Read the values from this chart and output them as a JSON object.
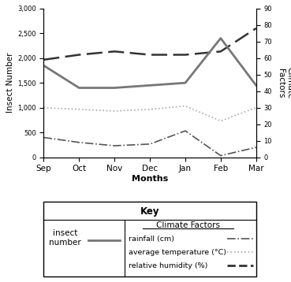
{
  "months": [
    "Sep",
    "Oct",
    "Nov",
    "Dec",
    "Jan",
    "Feb",
    "Mar"
  ],
  "insect_number": [
    1850,
    1400,
    1400,
    1450,
    1500,
    2400,
    1450
  ],
  "rainfall_right": [
    12,
    9,
    7,
    8,
    16,
    1,
    6
  ],
  "avg_temp_right": [
    30,
    29,
    28,
    29,
    31,
    22,
    30
  ],
  "rel_humidity_right": [
    59,
    62,
    64,
    62,
    62,
    64,
    78
  ],
  "left_ylim": [
    0,
    3000
  ],
  "right_ylim": [
    0,
    90
  ],
  "left_ytick_labels": [
    "0",
    "500",
    "1,000",
    "1,500",
    "2,000",
    "2,500",
    "3,000"
  ],
  "left_ytick_vals": [
    0,
    500,
    1000,
    1500,
    2000,
    2500,
    3000
  ],
  "right_ytick_vals": [
    0,
    10,
    20,
    30,
    40,
    50,
    60,
    70,
    80,
    90
  ],
  "right_ytick_labels": [
    "0",
    "10",
    "20",
    "30",
    "40",
    "50",
    "60",
    "70",
    "80",
    "90"
  ],
  "ylabel_left": "Insect Number",
  "ylabel_right": "Climate\nFactors",
  "xlabel": "Months",
  "insect_color": "#777777",
  "rainfall_color": "#555555",
  "temp_color": "#aaaaaa",
  "humidity_color": "#333333",
  "key_title": "Key",
  "cf_header": "Climate Factors",
  "insect_label_line1": "insect",
  "insect_label_line2": "number",
  "rainfall_label": "rainfall (cm)",
  "temp_label": "average temperature (°C)",
  "humidity_label": "relative humidity (%)"
}
